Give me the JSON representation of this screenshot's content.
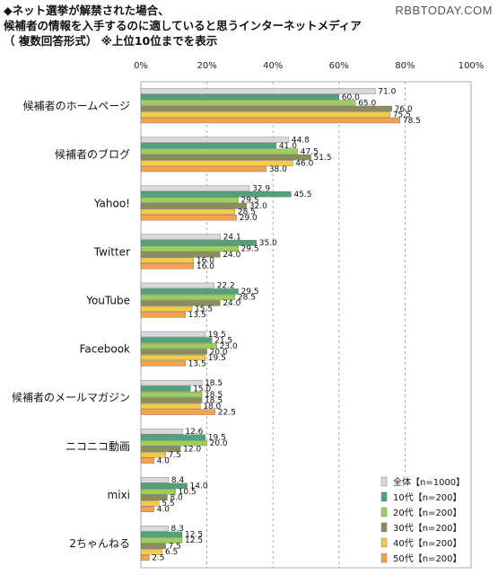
{
  "header": {
    "title_lines": [
      "◆ネット選挙が解禁された場合、",
      "候補者の情報を入手するのに適していると思うインターネットメディア",
      "（ 複数回答形式） ※上位10位までを表示"
    ],
    "watermark": "RBBTODAY.COM"
  },
  "chart_data": {
    "type": "bar",
    "orientation": "horizontal",
    "xlim": [
      0,
      100
    ],
    "x_tick_labels": [
      "0%",
      "20%",
      "40%",
      "60%",
      "80%",
      "100%"
    ],
    "x_ticks": [
      0,
      20,
      40,
      60,
      80,
      100
    ],
    "grid": true,
    "legend_position": "bottom-right",
    "categories": [
      "候補者のホームページ",
      "候補者のブログ",
      "Yahoo!",
      "Twitter",
      "YouTube",
      "Facebook",
      "候補者のメールマガジン",
      "ニコニコ動画",
      "mixi",
      "2ちゃんねる"
    ],
    "series": [
      {
        "name": "全体【n=1000】",
        "color": "#d9d9d9",
        "values": [
          71.0,
          44.8,
          32.9,
          24.1,
          22.2,
          19.5,
          18.5,
          12.6,
          8.4,
          8.3
        ]
      },
      {
        "name": "10代【n=200】",
        "color": "#4fa27a",
        "values": [
          60.0,
          41.0,
          45.5,
          35.0,
          29.5,
          21.5,
          15.0,
          19.5,
          14.0,
          12.5
        ]
      },
      {
        "name": "20代【n=200】",
        "color": "#9ccf5a",
        "values": [
          65.0,
          47.5,
          29.5,
          29.5,
          28.5,
          23.0,
          18.5,
          20.0,
          10.5,
          12.5
        ]
      },
      {
        "name": "30代【n=200】",
        "color": "#8c8c5a",
        "values": [
          76.0,
          51.5,
          32.0,
          24.0,
          24.0,
          20.0,
          18.5,
          12.0,
          8.0,
          7.5
        ]
      },
      {
        "name": "40代【n=200】",
        "color": "#f5c94a",
        "values": [
          75.5,
          46.0,
          28.5,
          16.0,
          15.5,
          19.5,
          18.0,
          7.5,
          5.5,
          6.5
        ]
      },
      {
        "name": "50代【n=200】",
        "color": "#f7a24b",
        "values": [
          78.5,
          38.0,
          29.0,
          16.0,
          13.5,
          13.5,
          22.5,
          4.0,
          4.0,
          2.5
        ]
      }
    ]
  }
}
